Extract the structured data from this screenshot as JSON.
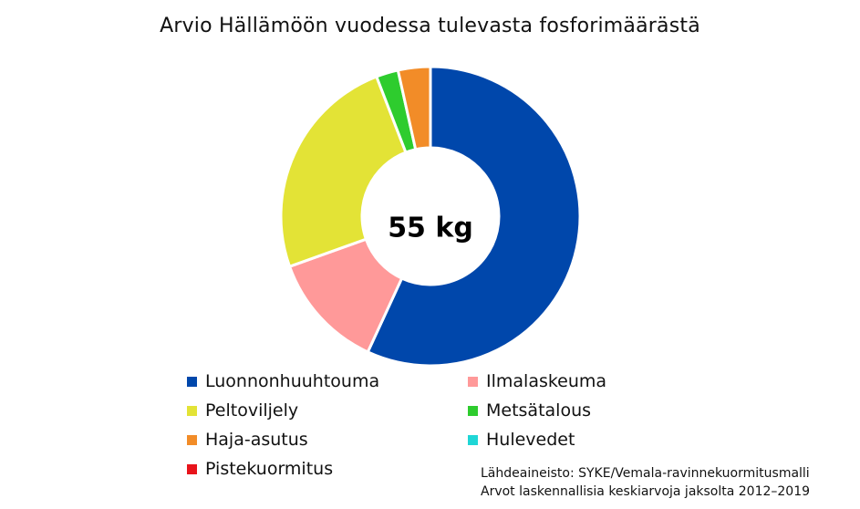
{
  "chart_data": {
    "type": "pie",
    "variant": "donut",
    "title": "Arvio Hällämöön vuodessa tulevasta fosforimäärästä",
    "center_label": "55 kg",
    "unit": "kg",
    "total": 55,
    "categories": [
      "Luonnonhuuhtouma",
      "Ilmalaskeuma",
      "Peltoviljely",
      "Metsätalous",
      "Haja-asutus",
      "Hulevedet",
      "Pistekuormitus"
    ],
    "values": [
      31.0,
      6.9,
      13.4,
      1.3,
      1.9,
      0,
      0
    ],
    "colors": [
      "#0047AB",
      "#FF9999",
      "#E3E336",
      "#2ECC2E",
      "#F28C28",
      "#1FD6D6",
      "#E8141B"
    ],
    "legend_placement": "bottom",
    "source_lines": [
      "Lähdeaineisto: SYKE/Vemala-ravinnekuormitusmalli",
      "Arvot laskennallisia keskiarvoja jaksolta 2012–2019"
    ]
  }
}
